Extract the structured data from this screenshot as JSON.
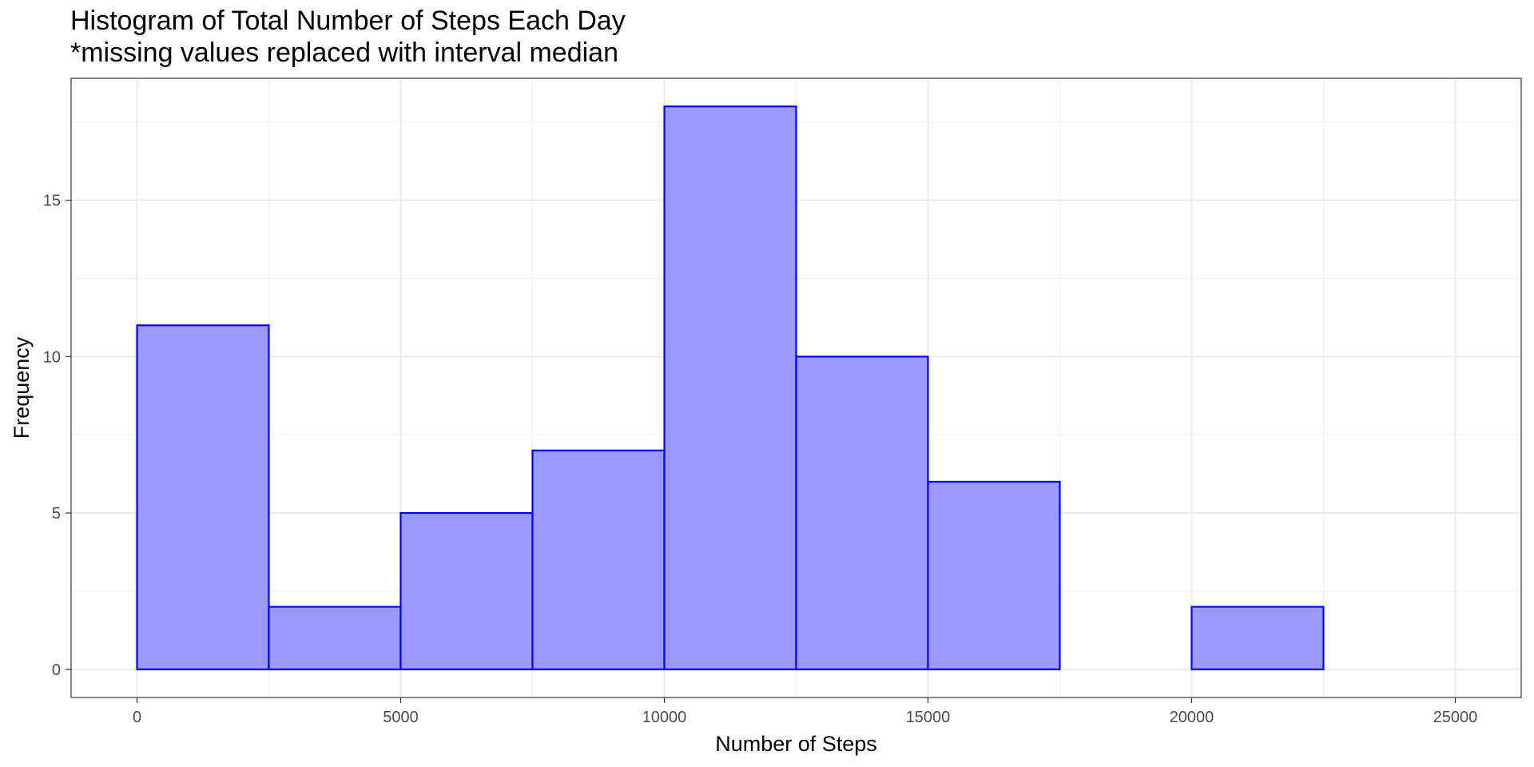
{
  "chart_data": {
    "type": "bar",
    "title": "Histogram of Total Number of Steps Each Day",
    "subtitle": "*missing values replaced with interval median",
    "xlabel": "Number of Steps",
    "ylabel": "Frequency",
    "bin_width": 2500,
    "bins": [
      {
        "from": 0,
        "to": 2500,
        "count": 11
      },
      {
        "from": 2500,
        "to": 5000,
        "count": 2
      },
      {
        "from": 5000,
        "to": 7500,
        "count": 5
      },
      {
        "from": 7500,
        "to": 10000,
        "count": 7
      },
      {
        "from": 10000,
        "to": 12500,
        "count": 18
      },
      {
        "from": 12500,
        "to": 15000,
        "count": 10
      },
      {
        "from": 15000,
        "to": 17500,
        "count": 6
      },
      {
        "from": 17500,
        "to": 20000,
        "count": 0
      },
      {
        "from": 20000,
        "to": 22500,
        "count": 2
      },
      {
        "from": 22500,
        "to": 25000,
        "count": 0
      }
    ],
    "xlim": [
      -1250,
      26250
    ],
    "ylim": [
      -0.9,
      18.9
    ],
    "x_ticks": [
      0,
      5000,
      10000,
      15000,
      20000,
      25000
    ],
    "y_ticks": [
      0,
      5,
      10,
      15
    ],
    "grid": true,
    "colors": {
      "fill": "#9999ff",
      "outline": "#0000ff",
      "grid_major": "#ebebeb",
      "grid_minor": "#f2f2f2",
      "panel_border": "#333333"
    }
  }
}
